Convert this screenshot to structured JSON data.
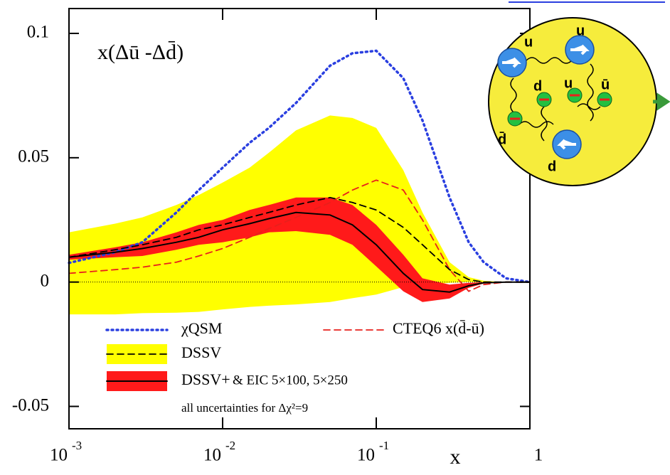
{
  "chart_data": {
    "type": "line",
    "annotation": "x(Δū -Δd̄)",
    "x_label": "x",
    "legend_note": "& EIC 5×100, 5×250",
    "legend_footnote": "all uncertainties for Δχ²=9",
    "log_x": true,
    "zero_line": true,
    "xlim": [
      0.001,
      1
    ],
    "ylim": [
      -0.059,
      0.11
    ],
    "xticks": [
      {
        "value": 0.001,
        "label": "10",
        "exponent": "-3"
      },
      {
        "value": 0.01,
        "label": "10",
        "exponent": "-2"
      },
      {
        "value": 0.1,
        "label": "10",
        "exponent": "-1"
      },
      1
    ],
    "yticks": [
      -0.05,
      0,
      0.05,
      0.1
    ],
    "x": [
      0.001,
      0.002,
      0.003,
      0.005,
      0.007,
      0.01,
      0.015,
      0.02,
      0.03,
      0.05,
      0.07,
      0.1,
      0.15,
      0.2,
      0.3,
      0.4,
      0.5,
      0.7,
      1
    ],
    "series": [
      {
        "name": "χQSM",
        "color": "#2a3fe0",
        "style": "dotted",
        "values": [
          0.0077,
          0.012,
          0.016,
          0.028,
          0.037,
          0.046,
          0.056,
          0.062,
          0.072,
          0.087,
          0.092,
          0.093,
          0.082,
          0.065,
          0.034,
          0.016,
          0.008,
          0.0015,
          0
        ]
      },
      {
        "name": "CTEQ6 x(d̄-ū)",
        "color": "#e8201c",
        "style": "dashed",
        "values": [
          0.0035,
          0.005,
          0.006,
          0.008,
          0.0105,
          0.0135,
          0.018,
          0.0215,
          0.026,
          0.032,
          0.037,
          0.041,
          0.037,
          0.025,
          0.005,
          -0.0037,
          -0.001,
          0,
          0
        ]
      },
      {
        "name": "DSSV",
        "color": "#000000",
        "style": "dashed",
        "band_color": "#ffff00",
        "values": [
          0.01,
          0.013,
          0.015,
          0.018,
          0.021,
          0.023,
          0.026,
          0.028,
          0.031,
          0.034,
          0.032,
          0.029,
          0.022,
          0.015,
          0.005,
          0.001,
          0,
          0,
          0
        ],
        "upper": [
          0.02,
          0.0235,
          0.026,
          0.031,
          0.035,
          0.04,
          0.046,
          0.052,
          0.061,
          0.067,
          0.066,
          0.062,
          0.045,
          0.028,
          0.008,
          0.002,
          0.0005,
          0,
          0
        ],
        "lower": [
          -0.013,
          -0.013,
          -0.0125,
          -0.0123,
          -0.012,
          -0.011,
          -0.01,
          -0.0095,
          -0.009,
          -0.008,
          -0.0065,
          -0.005,
          -0.002,
          -0.001,
          -0.0003,
          0,
          0,
          0,
          0
        ]
      },
      {
        "name": "DSSV+",
        "color": "#000000",
        "style": "solid",
        "band_color": "#ff1a1a",
        "values": [
          0.01,
          0.012,
          0.0135,
          0.016,
          0.018,
          0.021,
          0.0235,
          0.0255,
          0.028,
          0.027,
          0.023,
          0.015,
          0.0035,
          -0.003,
          -0.004,
          -0.0015,
          -0.0003,
          0,
          0
        ],
        "upper": [
          0.011,
          0.014,
          0.016,
          0.02,
          0.023,
          0.025,
          0.029,
          0.031,
          0.034,
          0.034,
          0.031,
          0.023,
          0.011,
          0.0015,
          -0.001,
          -0.0003,
          0,
          0,
          0
        ],
        "lower": [
          0.009,
          0.01,
          0.0105,
          0.013,
          0.015,
          0.016,
          0.018,
          0.02,
          0.0205,
          0.019,
          0.015,
          0.0063,
          -0.0037,
          -0.008,
          -0.0066,
          -0.0023,
          -0.0006,
          0,
          0
        ]
      }
    ]
  },
  "inset": {
    "labels": [
      "u",
      "u",
      "d",
      "u",
      "ū",
      "d̄",
      "d"
    ]
  }
}
